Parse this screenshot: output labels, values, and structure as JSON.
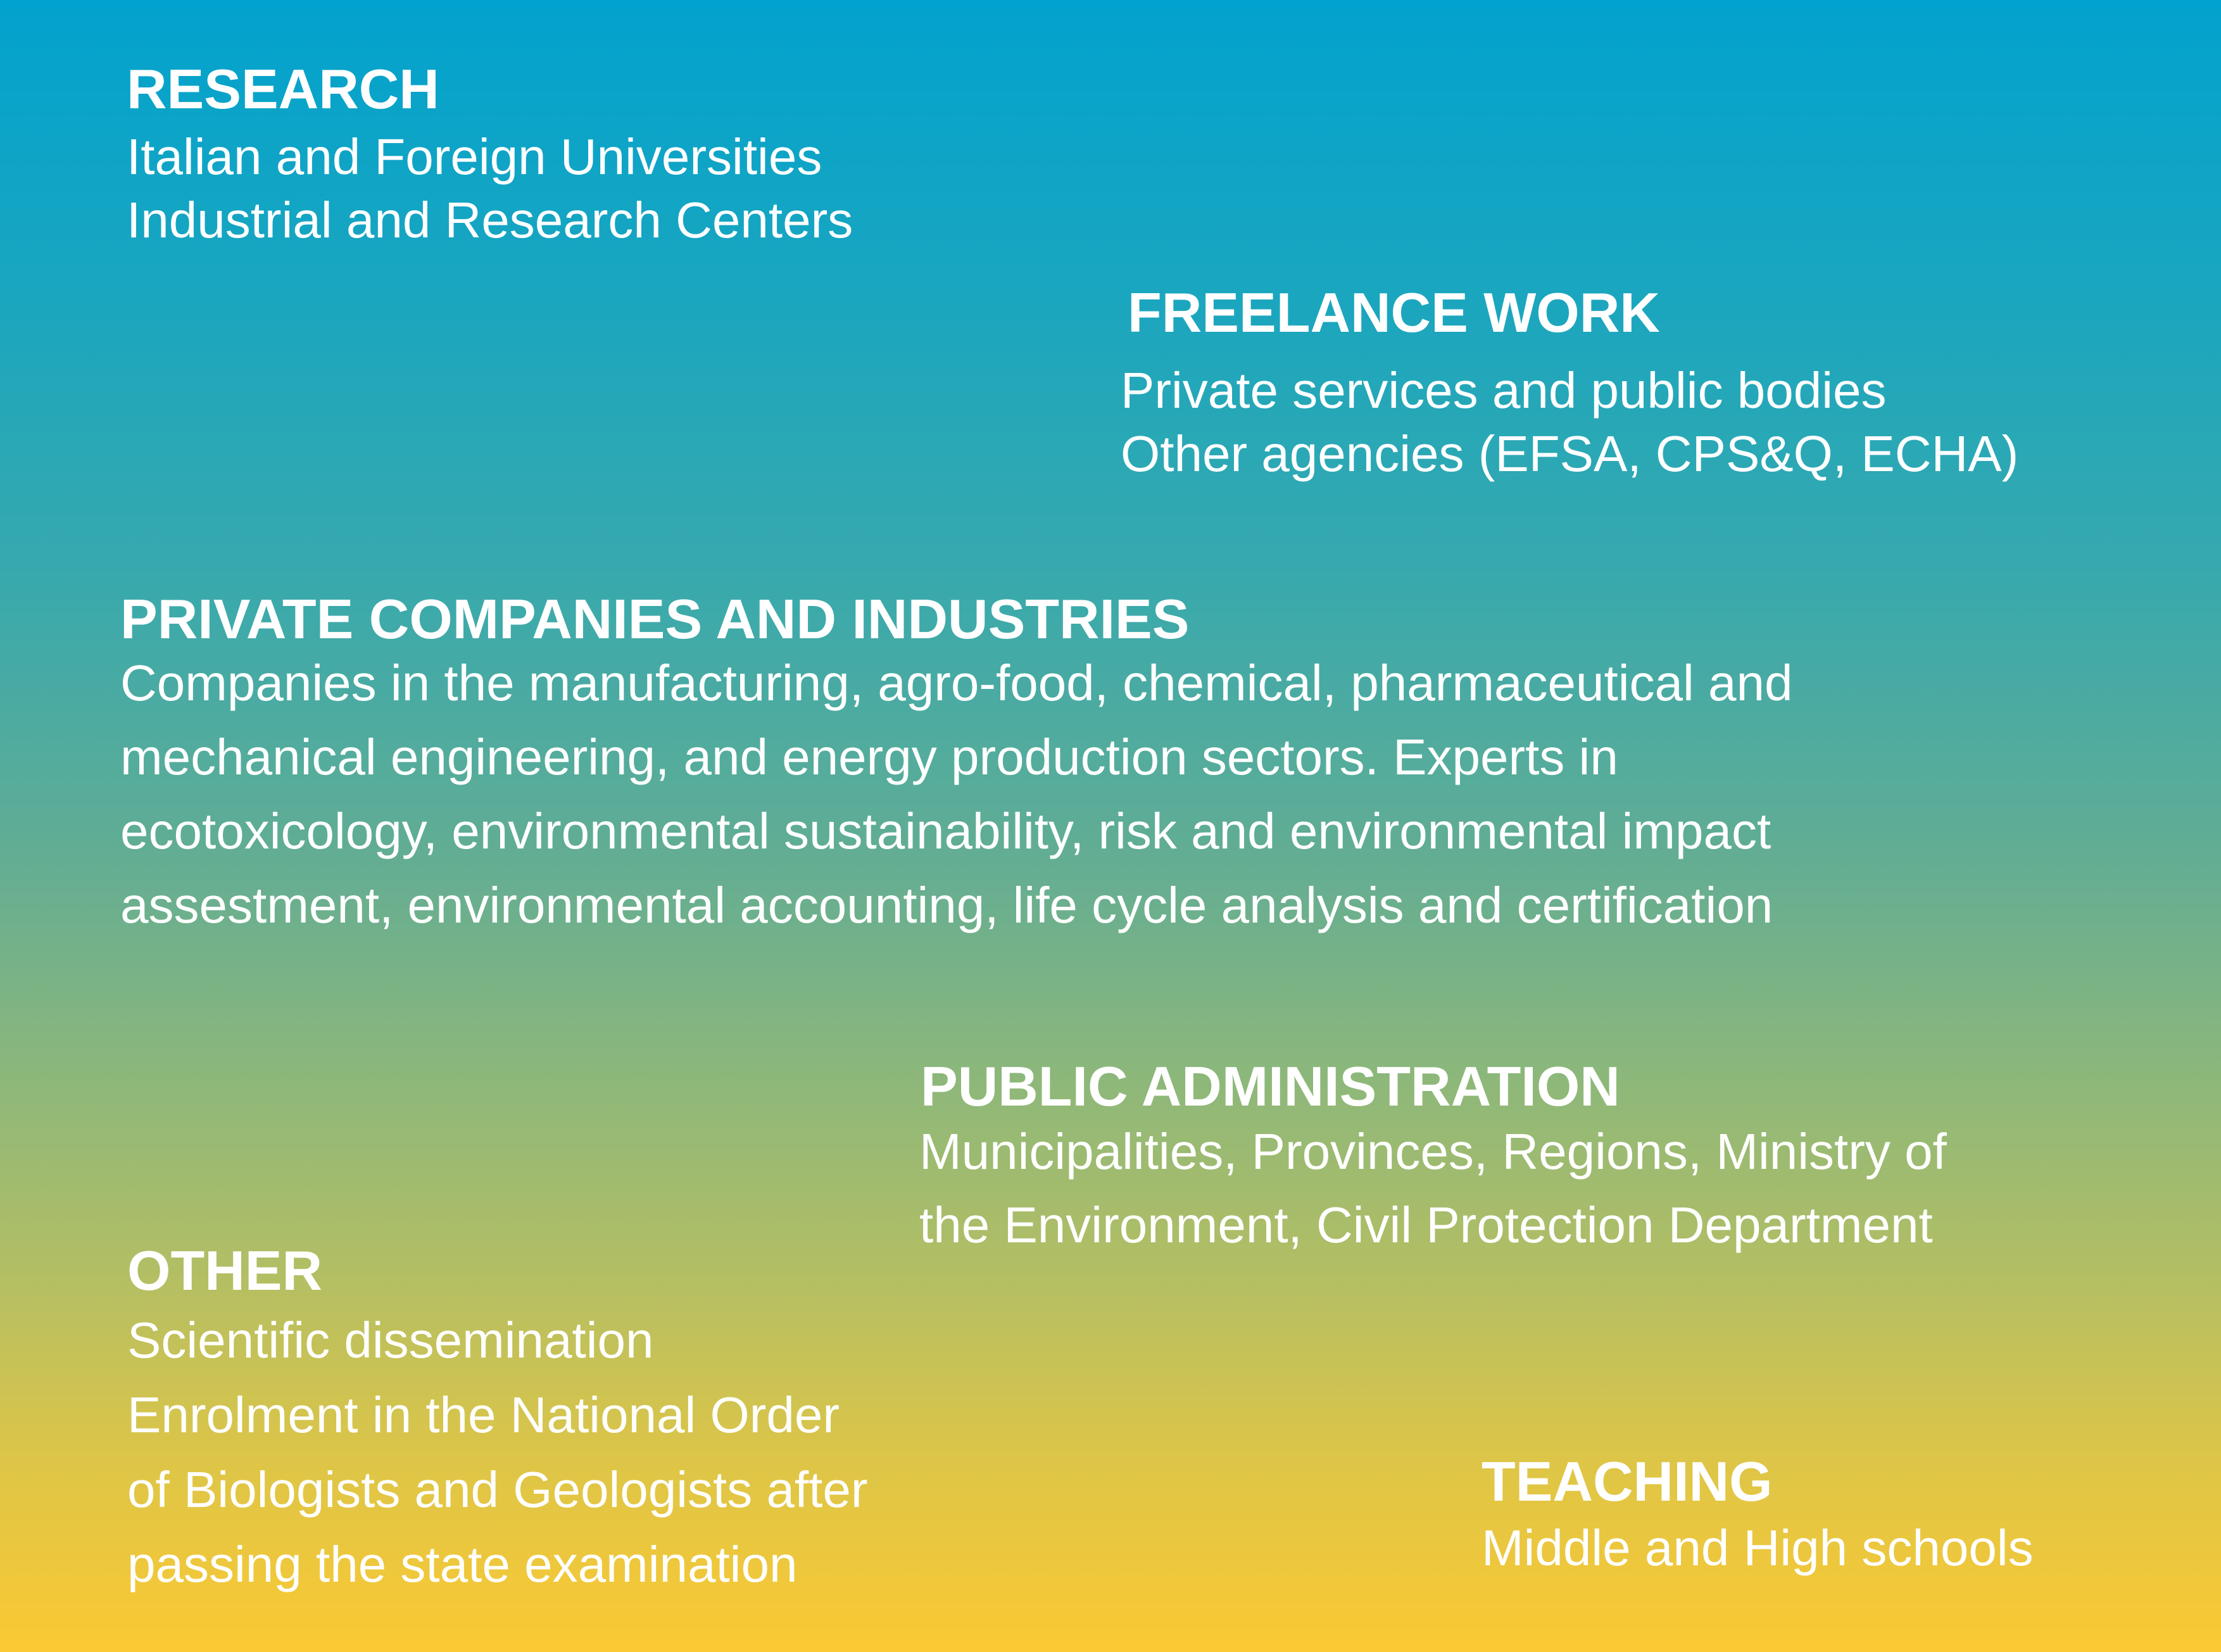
{
  "colors": {
    "gradient_top": "#02a2ce",
    "gradient_bottom": "#fbc933",
    "text": "#ffffff"
  },
  "sections": {
    "research": {
      "title": "RESEARCH",
      "lines": [
        "Italian and Foreign Universities",
        "Industrial and Research Centers"
      ]
    },
    "freelance": {
      "title": "FREELANCE WORK",
      "lines": [
        "Private services and public bodies",
        "Other agencies (EFSA, CPS&Q, ECHA)"
      ]
    },
    "private": {
      "title": "PRIVATE COMPANIES AND INDUSTRIES",
      "lines": [
        "Companies in the manufacturing, agro-food, chemical, pharmaceutical and",
        "mechanical engineering, and energy production sectors. Experts in",
        "ecotoxicology, environmental sustainability, risk and environmental impact",
        "assestment, environmental accounting, life cycle analysis and certification"
      ]
    },
    "public": {
      "title": "PUBLIC ADMINISTRATION",
      "lines": [
        "Municipalities, Provinces, Regions, Ministry of",
        "the Environment, Civil Protection Department"
      ]
    },
    "other": {
      "title": "OTHER",
      "lines": [
        "Scientific dissemination",
        "Enrolment in the National Order",
        "of Biologists and Geologists after",
        "passing the state examination"
      ]
    },
    "teaching": {
      "title": "TEACHING",
      "lines": [
        "Middle and High schools"
      ]
    }
  }
}
